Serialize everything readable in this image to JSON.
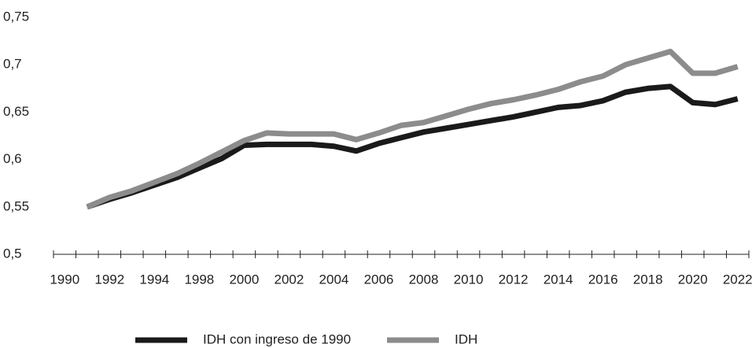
{
  "chart_data": {
    "type": "line",
    "categories": [
      "1990",
      null,
      "1992",
      null,
      "1994",
      null,
      "1998",
      null,
      "2000",
      null,
      "2002",
      null,
      "2004",
      null,
      "2006",
      null,
      "2008",
      null,
      "2010",
      null,
      "2012",
      null,
      "2014",
      null,
      "2016",
      null,
      "2018",
      null,
      "2020",
      null,
      "2022"
    ],
    "series": [
      {
        "name": "IDH con ingreso de 1990",
        "color": "#1a1a1a",
        "values": [
          null,
          0.55,
          0.558,
          0.565,
          0.573,
          0.581,
          0.591,
          0.601,
          0.615,
          0.616,
          0.616,
          0.616,
          0.614,
          0.609,
          0.617,
          0.623,
          0.629,
          0.633,
          0.637,
          0.641,
          0.645,
          0.65,
          0.655,
          0.657,
          0.662,
          0.671,
          0.675,
          0.677,
          0.66,
          0.658,
          0.664
        ]
      },
      {
        "name": "IDH",
        "color": "#8c8c8c",
        "values": [
          null,
          0.55,
          0.56,
          0.567,
          0.576,
          0.585,
          0.596,
          0.608,
          0.62,
          0.628,
          0.627,
          0.627,
          0.627,
          0.621,
          0.628,
          0.636,
          0.639,
          0.646,
          0.653,
          0.659,
          0.663,
          0.668,
          0.674,
          0.682,
          0.688,
          0.7,
          0.707,
          0.714,
          0.691,
          0.691,
          0.698
        ]
      }
    ],
    "ylim": [
      0.5,
      0.75
    ],
    "yticks": [
      {
        "value": 0.5,
        "label": "0,5"
      },
      {
        "value": 0.55,
        "label": "0,55"
      },
      {
        "value": 0.6,
        "label": "0,6"
      },
      {
        "value": 0.65,
        "label": "0,65"
      },
      {
        "value": 0.7,
        "label": "0,7"
      },
      {
        "value": 0.75,
        "label": "0,75"
      }
    ],
    "grid": false,
    "legend": "bottom"
  }
}
